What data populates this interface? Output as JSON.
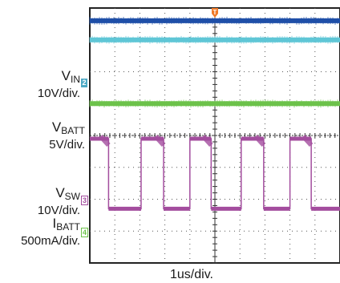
{
  "chart_data": {
    "type": "line",
    "title": "",
    "xlabel": "1us/div.",
    "ylabel": "",
    "grid": true,
    "divisions": {
      "x": 10,
      "y": 8
    },
    "trigger_marker": "T",
    "channels": [
      {
        "id": "1",
        "symbol": "",
        "subscript": "",
        "scale": "",
        "color": "#1f4fa8",
        "level_div": 7.6,
        "waveform": "dc"
      },
      {
        "id": "2",
        "symbol": "",
        "subscript": "",
        "scale": "",
        "color": "#5fc6d6",
        "level_div": 7.0,
        "waveform": "dc"
      },
      {
        "id": "2",
        "symbol": "V",
        "subscript": "IN",
        "scale": "10V/div.",
        "color": "#6cc24a",
        "level_div": 5.0,
        "waveform": "dc"
      },
      {
        "id": "3",
        "symbol": "V",
        "subscript": "SW",
        "scale": "10V/div.",
        "color": "#a34d9e",
        "level_div": 1.7,
        "high_div": 3.9,
        "waveform": "square",
        "edges_rise": [
          -0.5,
          2.05,
          4.0,
          6.05,
          8.0
        ],
        "edges_fall": [
          0.75,
          2.95,
          4.85,
          6.95,
          8.85
        ]
      },
      {
        "id": "4",
        "symbol": "I",
        "subscript": "BATT",
        "scale": "500mA/div.",
        "color": "#6cc24a",
        "level_div": 0.9,
        "waveform": "none"
      }
    ],
    "extra_labels": [
      {
        "symbol": "V",
        "subscript": "BATT",
        "scale": "5V/div."
      }
    ]
  }
}
